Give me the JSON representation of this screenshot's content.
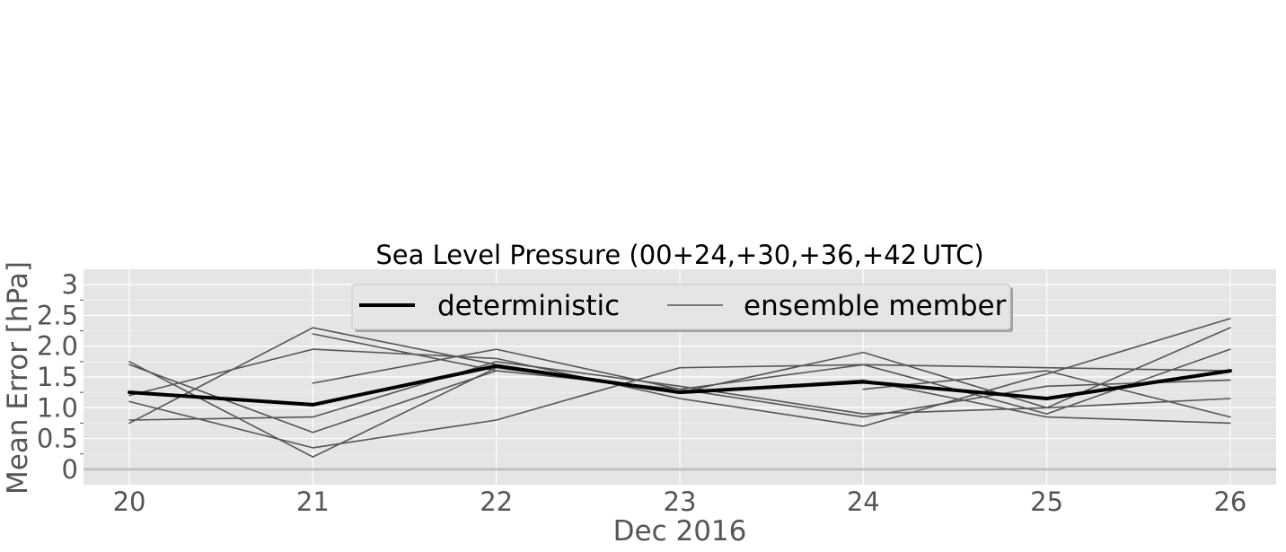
{
  "chart_data": {
    "type": "line",
    "title": "Sea Level Pressure (00+24,+30,+36,+42 UTC)",
    "xlabel": "Dec 2016",
    "ylabel": "Mean Error [hPa]",
    "x": [
      20,
      21,
      22,
      23,
      24,
      25,
      26
    ],
    "x_tick_labels": [
      "20",
      "21",
      "22",
      "23",
      "24",
      "25",
      "26"
    ],
    "xlim": [
      19.75,
      26.25
    ],
    "ylim": [
      -0.25,
      3.25
    ],
    "y_ticks": [
      0,
      0.5,
      1.0,
      1.5,
      2.0,
      2.5,
      3
    ],
    "y_tick_labels": [
      "0",
      "0.5",
      "1.0",
      "1.5",
      "2.0",
      "2.5",
      "3"
    ],
    "grid": true,
    "legend_position": "top-center",
    "colors": {
      "deterministic": "#000000",
      "ensemble": "#555555",
      "zero_line": "#c0c0c0",
      "background": "#e5e5e5"
    },
    "series": [
      {
        "name": "deterministic",
        "role": "deterministic",
        "values": [
          1.25,
          1.05,
          1.68,
          1.25,
          1.42,
          1.15,
          1.6
        ]
      },
      {
        "name": "ensemble member",
        "role": "ensemble",
        "values": [
          1.7,
          0.6,
          1.6,
          1.3,
          0.85,
          1.35,
          1.45
        ]
      },
      {
        "name": "",
        "role": "ensemble",
        "values": [
          0.8,
          0.85,
          1.75,
          1.35,
          0.9,
          1.0,
          1.15
        ]
      },
      {
        "name": "",
        "role": "ensemble",
        "values": [
          1.1,
          0.35,
          0.8,
          1.65,
          1.7,
          1.65,
          1.6
        ]
      },
      {
        "name": "",
        "role": "ensemble",
        "values": [
          1.2,
          1.95,
          1.8,
          1.15,
          0.7,
          1.55,
          2.45
        ]
      },
      {
        "name": "",
        "role": "ensemble",
        "values": [
          0.75,
          2.3,
          1.7,
          1.25,
          1.9,
          1.0,
          2.3
        ]
      },
      {
        "name": "",
        "role": "ensemble",
        "values": [
          1.75,
          0.2,
          1.65,
          1.25,
          1.45,
          0.85,
          0.75
        ]
      },
      {
        "name": "",
        "role": "ensemble",
        "values": [
          null,
          2.2,
          1.6,
          null,
          1.3,
          1.6,
          0.85
        ]
      },
      {
        "name": "",
        "role": "ensemble",
        "values": [
          null,
          1.4,
          1.95,
          1.3,
          1.7,
          0.9,
          1.95
        ]
      }
    ],
    "legend": [
      {
        "label": "deterministic",
        "role": "deterministic"
      },
      {
        "label": "ensemble member",
        "role": "ensemble"
      }
    ]
  }
}
